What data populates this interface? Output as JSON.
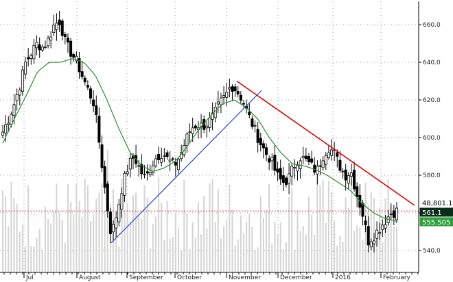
{
  "chart_data": {
    "type": "candlestick",
    "title": "",
    "xlabel": "",
    "ylabel": "",
    "x_tick_labels": [
      "Jul",
      "August",
      "September",
      "October",
      "November",
      "December",
      "2016",
      "February"
    ],
    "y_ticks": [
      540,
      560,
      580,
      600,
      620,
      640,
      660
    ],
    "y_tick_labels": [
      "540.0",
      "560.0",
      "580.0",
      "600.0",
      "620.0",
      "640.0",
      "660.0"
    ],
    "ylim": [
      533,
      670
    ],
    "grid": true,
    "series": [
      {
        "name": "",
        "kind": "ohlc",
        "key_closes": [
          603,
          610,
          618,
          628,
          640,
          645,
          650,
          648,
          652,
          660,
          662,
          650,
          645,
          640,
          632,
          625,
          618,
          595,
          570,
          548,
          560,
          575,
          585,
          590,
          583,
          578,
          585,
          590,
          592,
          588,
          585,
          590,
          598,
          605,
          607,
          606,
          608,
          612,
          618,
          622,
          628,
          625,
          620,
          612,
          605,
          598,
          592,
          588,
          580,
          576,
          578,
          585,
          590,
          588,
          585,
          582,
          590,
          595,
          592,
          585,
          580,
          582,
          570,
          560,
          545,
          548,
          552,
          556,
          560,
          561
        ]
      },
      {
        "name": "",
        "kind": "moving_average",
        "key_values": [
          597,
          610,
          622,
          635,
          640,
          640,
          642,
          640,
          633,
          620,
          605,
          592,
          585,
          582,
          584,
          588,
          596,
          605,
          612,
          618,
          620,
          616,
          610,
          600,
          592,
          586,
          585,
          583,
          580,
          576,
          572,
          565,
          560,
          557,
          555.5
        ]
      }
    ],
    "trendlines": [
      {
        "color": "#e00000",
        "from": {
          "period": "November",
          "value": 630
        },
        "to": {
          "period": "February",
          "value": 564
        }
      },
      {
        "color": "#1f3fd0",
        "from": {
          "period": "August",
          "value": 544
        },
        "to": {
          "period": "November",
          "value": 625
        }
      }
    ],
    "reference_line": {
      "value": 561,
      "style": "dotted",
      "color": "#e23030"
    },
    "volume_bars": true,
    "value_tags": [
      {
        "label": "48,801.19",
        "value": 563.5,
        "bg": "#ffffff",
        "fg": "#000000"
      },
      {
        "label": "561.1",
        "value": 559.8,
        "bg": "#0b2c1a",
        "fg": "#ffffff"
      },
      {
        "label": "555.505",
        "value": 555.5,
        "bg": "#2f9e3c",
        "fg": "#ffffff"
      }
    ]
  }
}
